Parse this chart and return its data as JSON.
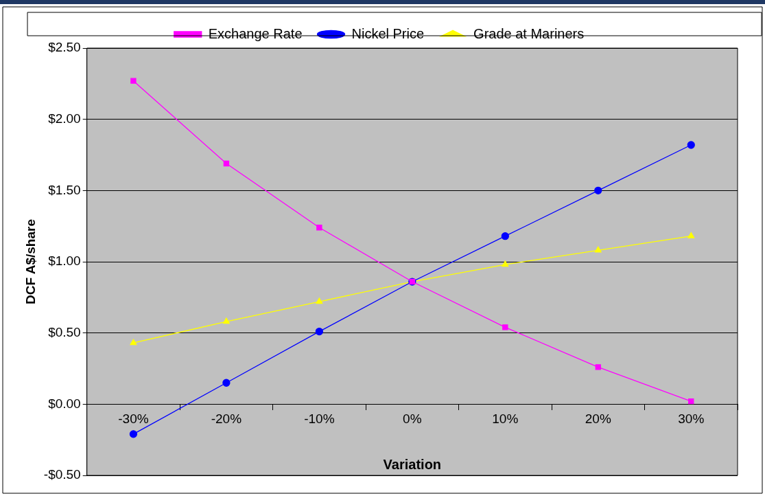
{
  "chart_data": {
    "type": "line",
    "xlabel": "Variation",
    "ylabel": "DCF A$/share",
    "categories": [
      "-30%",
      "-20%",
      "-10%",
      "0%",
      "10%",
      "20%",
      "30%"
    ],
    "series": [
      {
        "name": "Exchange Rate",
        "color": "#ff00ff",
        "marker": "square",
        "values": [
          2.27,
          1.69,
          1.24,
          0.86,
          0.54,
          0.26,
          0.02
        ]
      },
      {
        "name": "Nickel Price",
        "color": "#0000ff",
        "marker": "circle",
        "values": [
          -0.21,
          0.15,
          0.51,
          0.86,
          1.18,
          1.5,
          1.82
        ]
      },
      {
        "name": "Grade at Mariners",
        "color": "#ffff00",
        "marker": "triangle",
        "values": [
          0.43,
          0.58,
          0.72,
          0.86,
          0.98,
          1.08,
          1.18
        ]
      }
    ],
    "ylim": [
      -0.5,
      2.5
    ],
    "yticks": [
      {
        "value": -0.5,
        "label": "-$0.50"
      },
      {
        "value": 0,
        "label": "$0.00"
      },
      {
        "value": 0.5,
        "label": "$0.50"
      },
      {
        "value": 1,
        "label": "$1.00"
      },
      {
        "value": 1.5,
        "label": "$1.50"
      },
      {
        "value": 2,
        "label": "$2.00"
      },
      {
        "value": 2.5,
        "label": "$2.50"
      }
    ],
    "grid": "y",
    "legend": "top",
    "line_style": "solid"
  }
}
